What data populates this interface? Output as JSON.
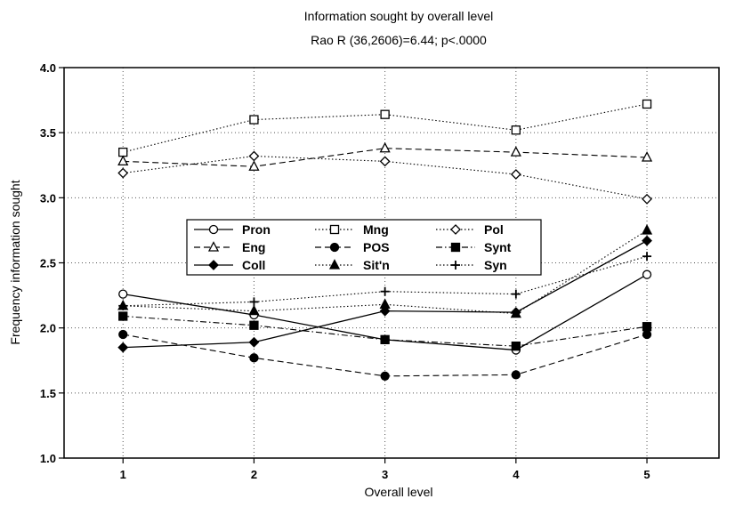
{
  "chart_data": {
    "type": "line",
    "title": "Information sought by overall level",
    "subtitle": "Rao R (36,2606)=6.44; p<.0000",
    "xlabel": "Overall level",
    "ylabel": "Frequency information sought",
    "x": [
      1,
      2,
      3,
      4,
      5
    ],
    "xlim": [
      0.55,
      5.55
    ],
    "ylim": [
      1.0,
      4.0
    ],
    "yticks": [
      "1.0",
      "1.5",
      "2.0",
      "2.5",
      "3.0",
      "3.5",
      "4.0"
    ],
    "xticks": [
      "1",
      "2",
      "3",
      "4",
      "5"
    ],
    "grid": true,
    "legend_position": "center-left",
    "series": [
      {
        "name": "Pron",
        "marker": "circle-open",
        "dash": "solid",
        "values": [
          2.26,
          2.1,
          1.91,
          1.83,
          2.41
        ]
      },
      {
        "name": "Mng",
        "marker": "square-open",
        "dash": "dotted",
        "values": [
          3.35,
          3.6,
          3.64,
          3.52,
          3.72
        ]
      },
      {
        "name": "Pol",
        "marker": "diamond-open",
        "dash": "dotted",
        "values": [
          3.19,
          3.32,
          3.28,
          3.18,
          2.99
        ]
      },
      {
        "name": "Eng",
        "marker": "triangle-open",
        "dash": "dashed",
        "values": [
          3.28,
          3.24,
          3.38,
          3.35,
          3.31
        ]
      },
      {
        "name": "POS",
        "marker": "circle-filled",
        "dash": "dashed",
        "values": [
          1.95,
          1.77,
          1.63,
          1.64,
          1.95
        ]
      },
      {
        "name": "Synt",
        "marker": "square-filled",
        "dash": "dashdot",
        "values": [
          2.09,
          2.02,
          1.91,
          1.86,
          2.01
        ]
      },
      {
        "name": "Coll",
        "marker": "diamond-filled",
        "dash": "solid",
        "values": [
          1.85,
          1.89,
          2.13,
          2.12,
          2.67
        ]
      },
      {
        "name": "Sit'n",
        "marker": "triangle-filled",
        "dash": "dotted",
        "values": [
          2.17,
          2.13,
          2.18,
          2.11,
          2.75
        ]
      },
      {
        "name": "Syn",
        "marker": "plus",
        "dash": "dotted",
        "values": [
          2.17,
          2.2,
          2.28,
          2.26,
          2.55
        ]
      }
    ]
  }
}
